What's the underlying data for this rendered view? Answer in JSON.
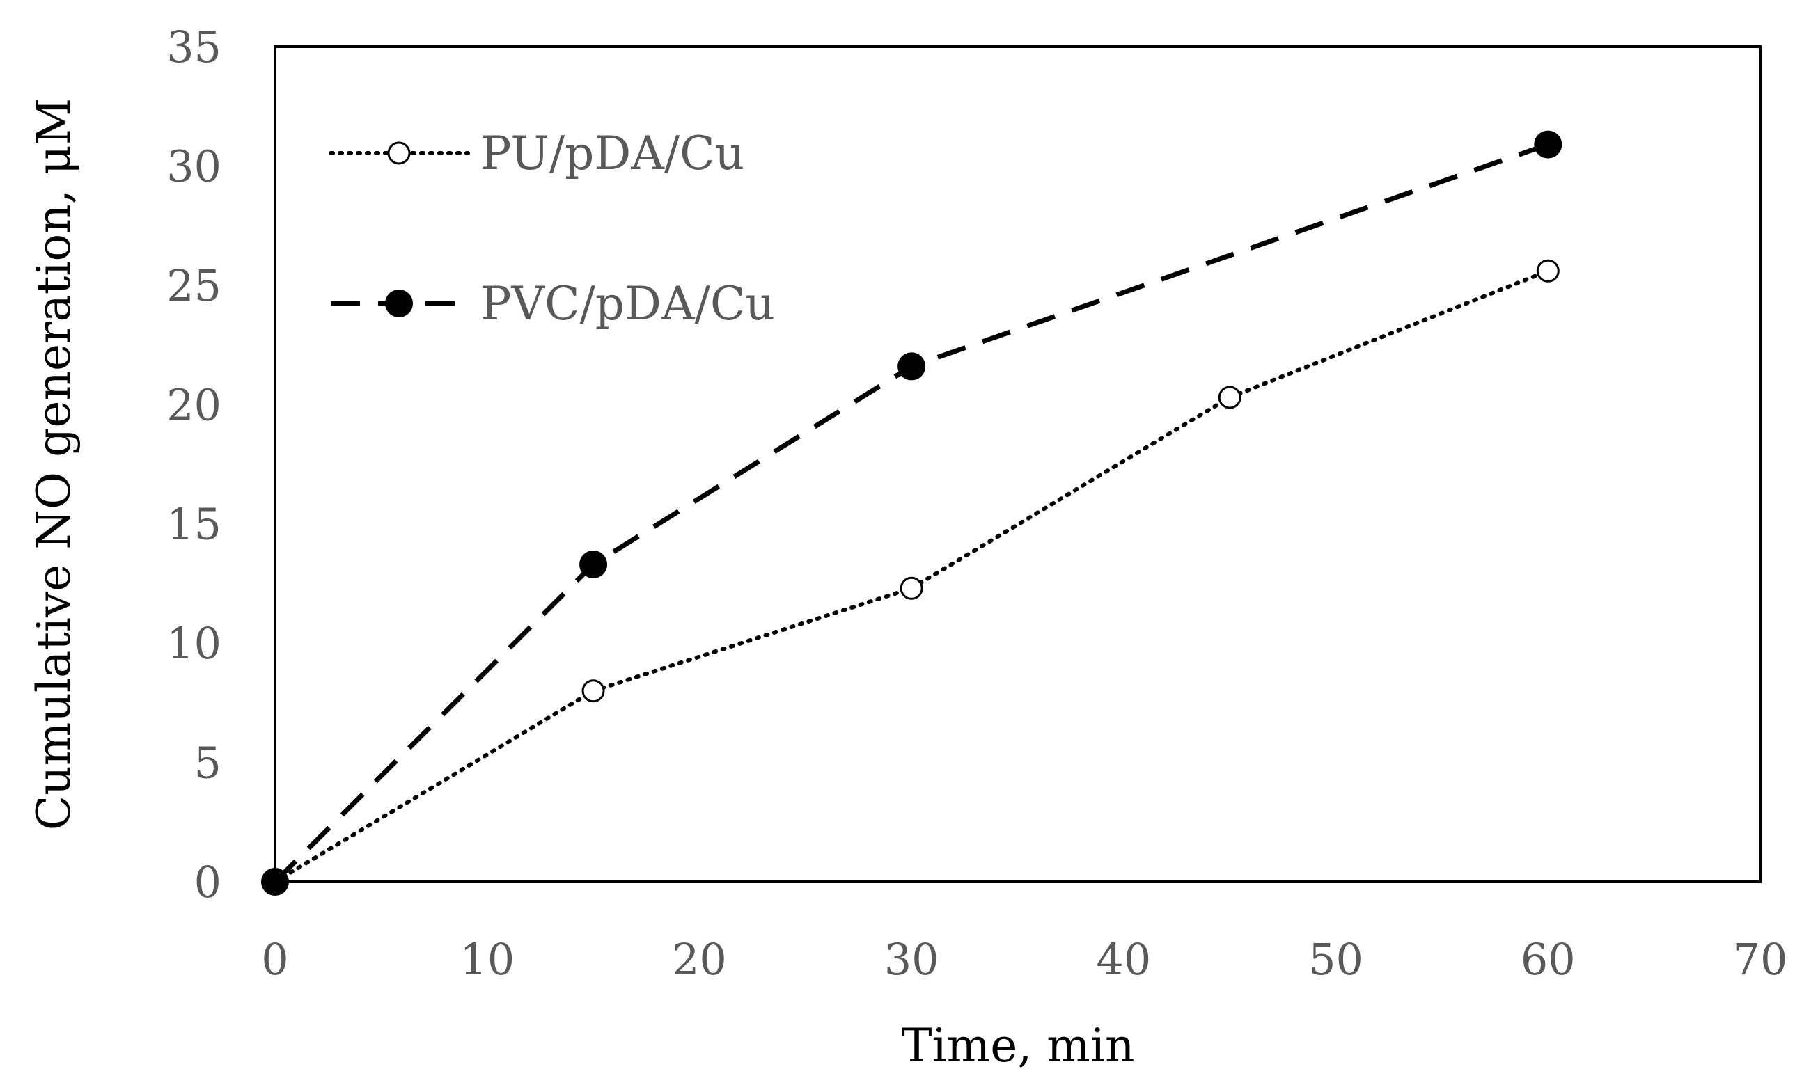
{
  "chart_data": {
    "type": "line",
    "title": "",
    "xlabel": "Time, min",
    "ylabel": "Cumulative NO generation, μM",
    "xlim": [
      0,
      70
    ],
    "ylim": [
      0,
      35
    ],
    "xticks": [
      0,
      10,
      20,
      30,
      40,
      50,
      60,
      70
    ],
    "yticks": [
      0,
      5,
      10,
      15,
      20,
      25,
      30,
      35
    ],
    "xtick_labels": [
      "0",
      "10",
      "20",
      "30",
      "40",
      "50",
      "60",
      "70"
    ],
    "ytick_labels": [
      "0",
      "5",
      "10",
      "15",
      "20",
      "25",
      "30",
      "35"
    ],
    "grid": false,
    "legend_position": "top-left",
    "series": [
      {
        "name": "PU/pDA/Cu",
        "line_style": "dotted",
        "marker": "open-circle",
        "x": [
          0,
          15,
          30,
          45,
          60
        ],
        "y": [
          0,
          8.0,
          12.3,
          20.3,
          25.6
        ]
      },
      {
        "name": "PVC/pDA/Cu",
        "line_style": "dashed",
        "marker": "filled-circle",
        "x": [
          0,
          15,
          30,
          60
        ],
        "y": [
          0,
          13.3,
          21.6,
          30.9
        ]
      }
    ],
    "colors": {
      "series": "#000000",
      "tick_label": "#595959",
      "axis_title": "#000000"
    }
  }
}
